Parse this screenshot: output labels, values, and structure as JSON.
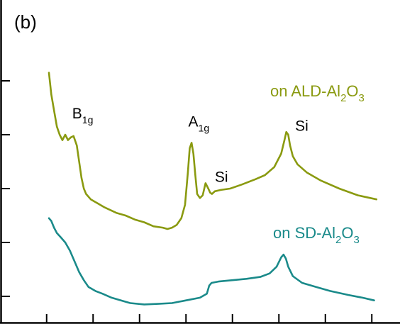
{
  "chart_data": {
    "type": "line",
    "panel_label": "(b)",
    "title": "",
    "xlabel": "",
    "ylabel": "",
    "xlim": [
      0,
      8.5
    ],
    "ylim": [
      0,
      10
    ],
    "x_tick_values": [
      0.5,
      1.5,
      2.5,
      3.5,
      4.5,
      5.5,
      6.5,
      7.5,
      8.5
    ],
    "y_tick_values": [
      1,
      3,
      5,
      7,
      9
    ],
    "grid": false,
    "series": [
      {
        "name": "on ALD-Al",
        "sub": "2",
        "name_mid": "O",
        "sub2": "3",
        "color": "#8a9a10",
        "x": [
          0.55,
          0.6,
          0.66,
          0.72,
          0.78,
          0.84,
          0.9,
          0.96,
          1.02,
          1.08,
          1.15,
          1.2,
          1.25,
          1.3,
          1.35,
          1.45,
          1.6,
          1.75,
          2.0,
          2.2,
          2.4,
          2.6,
          2.8,
          3.0,
          3.1,
          3.2,
          3.3,
          3.4,
          3.48,
          3.54,
          3.58,
          3.62,
          3.66,
          3.7,
          3.74,
          3.8,
          3.86,
          3.92,
          3.98,
          4.02,
          4.06,
          4.12,
          4.25,
          4.45,
          4.7,
          5.0,
          5.2,
          5.4,
          5.55,
          5.62,
          5.66,
          5.7,
          5.74,
          5.8,
          5.9,
          6.1,
          6.4,
          6.8,
          7.2,
          7.6
        ],
        "values": [
          9.3,
          8.5,
          7.9,
          7.3,
          7.0,
          6.8,
          7.0,
          6.8,
          6.9,
          6.95,
          6.6,
          6.0,
          5.4,
          5.0,
          4.8,
          4.6,
          4.45,
          4.3,
          4.1,
          4.0,
          3.85,
          3.75,
          3.6,
          3.55,
          3.5,
          3.55,
          3.65,
          3.9,
          4.4,
          5.6,
          6.5,
          6.7,
          6.3,
          5.5,
          4.8,
          4.65,
          4.75,
          5.2,
          5.0,
          4.85,
          4.8,
          4.9,
          4.95,
          5.0,
          5.15,
          5.35,
          5.5,
          5.8,
          6.3,
          6.8,
          7.1,
          7.0,
          6.6,
          6.2,
          5.9,
          5.6,
          5.3,
          5.0,
          4.75,
          4.6
        ]
      },
      {
        "name": "on SD-Al",
        "sub": "2",
        "name_mid": "O",
        "sub2": "3",
        "color": "#1a8a8a",
        "x": [
          0.55,
          0.6,
          0.66,
          0.72,
          0.8,
          0.9,
          1.0,
          1.1,
          1.2,
          1.3,
          1.4,
          1.55,
          1.7,
          1.9,
          2.1,
          2.3,
          2.6,
          2.9,
          3.2,
          3.5,
          3.8,
          3.95,
          4.0,
          4.05,
          4.2,
          4.5,
          4.8,
          5.1,
          5.3,
          5.45,
          5.55,
          5.6,
          5.65,
          5.7,
          5.8,
          6.0,
          6.3,
          6.6,
          7.0,
          7.3,
          7.55
        ],
        "values": [
          3.9,
          3.8,
          3.55,
          3.35,
          3.2,
          3.0,
          2.7,
          2.3,
          1.9,
          1.6,
          1.35,
          1.2,
          1.1,
          0.95,
          0.85,
          0.75,
          0.7,
          0.72,
          0.75,
          0.85,
          0.95,
          1.1,
          1.4,
          1.5,
          1.55,
          1.6,
          1.65,
          1.72,
          1.85,
          2.1,
          2.45,
          2.55,
          2.4,
          2.1,
          1.75,
          1.5,
          1.35,
          1.2,
          1.05,
          0.95,
          0.85
        ]
      }
    ],
    "annotations": [
      {
        "base": "B",
        "sub": "1g",
        "x": 1.05,
        "y": 7.6
      },
      {
        "base": "A",
        "sub": "1g",
        "x": 3.55,
        "y": 7.3
      },
      {
        "base": "Si",
        "sub": "",
        "x": 4.12,
        "y": 5.25
      },
      {
        "base": "Si",
        "sub": "",
        "x": 5.85,
        "y": 7.15
      }
    ]
  }
}
